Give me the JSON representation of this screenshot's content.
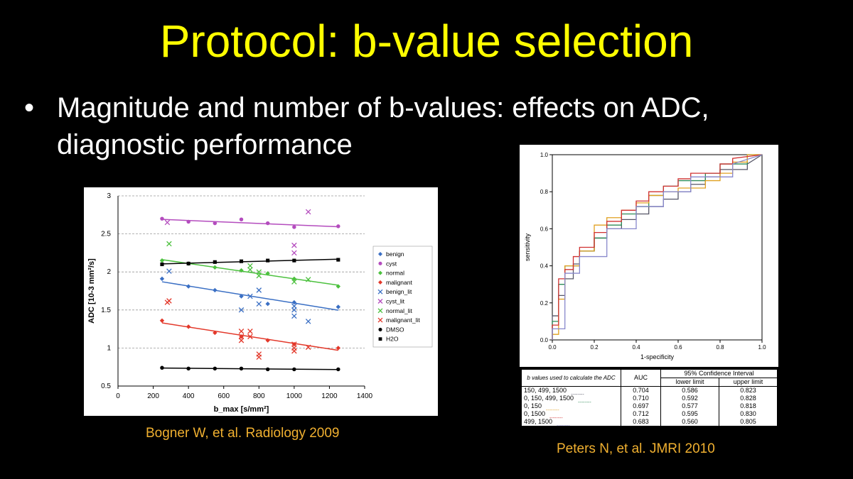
{
  "slide": {
    "title": "Protocol: b-value selection",
    "bullet_symbol": "•",
    "bullet": "Magnitude and number of b-values: effects on ADC, diagnostic performance",
    "citation_left": "Bogner W, et al. Radiology 2009",
    "citation_right": "Peters N, et al. JMRI 2010"
  },
  "chart_data": [
    {
      "type": "scatter",
      "xlabel": "b_max [s/mm²]",
      "ylabel": "ADC [10-3 mm²/s]",
      "xlim": [
        0,
        1400
      ],
      "ylim": [
        0.5,
        3
      ],
      "xticks": [
        "0",
        "200",
        "400",
        "600",
        "800",
        "1000",
        "1200",
        "1400"
      ],
      "yticks": [
        "0.5",
        "1",
        "1.5",
        "2",
        "2.5",
        "3"
      ],
      "grid": "horizontal dashed",
      "legend_position": "right",
      "series": [
        {
          "name": "benign",
          "color": "#3a6fc4",
          "marker": "diamond",
          "fit": true,
          "x": [
            250,
            400,
            550,
            700,
            850,
            1000,
            1250
          ],
          "y": [
            1.91,
            1.81,
            1.76,
            1.68,
            1.58,
            1.6,
            1.54
          ]
        },
        {
          "name": "cyst",
          "color": "#b44cbe",
          "marker": "circle",
          "fit": true,
          "x": [
            250,
            400,
            550,
            700,
            850,
            1000,
            1250
          ],
          "y": [
            2.7,
            2.66,
            2.64,
            2.69,
            2.64,
            2.59,
            2.6
          ]
        },
        {
          "name": "normal",
          "color": "#4cc13e",
          "marker": "diamond",
          "fit": true,
          "x": [
            250,
            400,
            550,
            700,
            850,
            1000,
            1250
          ],
          "y": [
            2.15,
            2.11,
            2.06,
            2.02,
            1.98,
            1.91,
            1.81
          ]
        },
        {
          "name": "malignant",
          "color": "#e3382a",
          "marker": "diamond",
          "fit": true,
          "x": [
            250,
            400,
            550,
            700,
            850,
            1000,
            1250
          ],
          "y": [
            1.36,
            1.28,
            1.2,
            1.15,
            1.1,
            1.05,
            1.0
          ]
        },
        {
          "name": "benign_lit",
          "color": "#3a6fc4",
          "marker": "x",
          "fit": false,
          "x": [
            290,
            700,
            750,
            800,
            800,
            1000,
            1000,
            1000,
            1080
          ],
          "y": [
            2.01,
            1.5,
            1.68,
            1.76,
            1.58,
            1.55,
            1.5,
            1.42,
            1.35
          ]
        },
        {
          "name": "cyst_lit",
          "color": "#b44cbe",
          "marker": "x",
          "fit": false,
          "x": [
            280,
            1000,
            1000,
            1080
          ],
          "y": [
            2.65,
            2.35,
            2.25,
            2.79
          ]
        },
        {
          "name": "normal_lit",
          "color": "#4cc13e",
          "marker": "x",
          "fit": false,
          "x": [
            290,
            750,
            750,
            800,
            800,
            1000,
            1080
          ],
          "y": [
            2.37,
            2.08,
            2.03,
            2.0,
            1.95,
            1.87,
            1.9
          ]
        },
        {
          "name": "malignant_lit",
          "color": "#e3382a",
          "marker": "x",
          "fit": false,
          "x": [
            280,
            290,
            700,
            700,
            700,
            750,
            750,
            800,
            800,
            1000,
            1000,
            1000,
            1080
          ],
          "y": [
            1.6,
            1.62,
            1.22,
            1.15,
            1.1,
            1.22,
            1.15,
            0.92,
            0.88,
            1.05,
            1.0,
            0.96,
            1.01
          ]
        },
        {
          "name": "DMSO",
          "color": "#000000",
          "marker": "circle",
          "fit": true,
          "x": [
            250,
            400,
            550,
            700,
            850,
            1000,
            1250
          ],
          "y": [
            0.74,
            0.73,
            0.73,
            0.73,
            0.72,
            0.72,
            0.72
          ]
        },
        {
          "name": "H2O",
          "color": "#000000",
          "marker": "square",
          "fit": true,
          "x": [
            250,
            400,
            550,
            700,
            850,
            1000,
            1250
          ],
          "y": [
            2.1,
            2.11,
            2.13,
            2.14,
            2.15,
            2.15,
            2.16
          ]
        }
      ]
    },
    {
      "type": "line",
      "xlabel": "1-specificity",
      "ylabel": "sensitivity",
      "xlim": [
        0,
        1
      ],
      "ylim": [
        0,
        1
      ],
      "xticks": [
        "0.0",
        "0.2",
        "0.4",
        "0.6",
        "0.8",
        "1.0"
      ],
      "yticks": [
        "0.0",
        "0.2",
        "0.4",
        "0.6",
        "0.8",
        "1.0"
      ],
      "series": [
        {
          "color": "#555566",
          "x": [
            0,
            0,
            0.03,
            0.03,
            0.06,
            0.06,
            0.1,
            0.1,
            0.13,
            0.13,
            0.2,
            0.2,
            0.26,
            0.26,
            0.33,
            0.33,
            0.4,
            0.4,
            0.46,
            0.46,
            0.53,
            0.53,
            0.6,
            0.6,
            0.66,
            0.66,
            0.73,
            0.73,
            0.8,
            0.8,
            0.93,
            0.93,
            1.0
          ],
          "y": [
            0,
            0.13,
            0.13,
            0.24,
            0.24,
            0.33,
            0.33,
            0.41,
            0.41,
            0.48,
            0.48,
            0.55,
            0.55,
            0.6,
            0.6,
            0.65,
            0.65,
            0.68,
            0.68,
            0.72,
            0.72,
            0.76,
            0.76,
            0.8,
            0.8,
            0.84,
            0.84,
            0.88,
            0.88,
            0.92,
            0.92,
            0.95,
            1.0
          ]
        },
        {
          "color": "#2e8b57",
          "x": [
            0,
            0,
            0.03,
            0.03,
            0.06,
            0.06,
            0.13,
            0.13,
            0.2,
            0.2,
            0.26,
            0.26,
            0.33,
            0.33,
            0.4,
            0.4,
            0.46,
            0.46,
            0.53,
            0.53,
            0.6,
            0.6,
            0.73,
            0.73,
            0.8,
            0.8,
            0.93,
            0.93,
            1.0
          ],
          "y": [
            0,
            0.1,
            0.1,
            0.3,
            0.3,
            0.4,
            0.4,
            0.48,
            0.48,
            0.55,
            0.55,
            0.62,
            0.62,
            0.68,
            0.68,
            0.72,
            0.72,
            0.78,
            0.78,
            0.83,
            0.83,
            0.86,
            0.86,
            0.9,
            0.9,
            0.95,
            0.95,
            1.0,
            1.0
          ]
        },
        {
          "color": "#e0a020",
          "x": [
            0,
            0,
            0.03,
            0.03,
            0.06,
            0.06,
            0.13,
            0.13,
            0.2,
            0.2,
            0.26,
            0.26,
            0.33,
            0.33,
            0.4,
            0.4,
            0.46,
            0.46,
            0.53,
            0.53,
            0.6,
            0.6,
            0.73,
            0.73,
            0.8,
            0.8,
            0.86,
            0.86,
            0.93,
            0.93,
            1.0
          ],
          "y": [
            0,
            0.03,
            0.03,
            0.22,
            0.22,
            0.4,
            0.4,
            0.48,
            0.48,
            0.62,
            0.62,
            0.66,
            0.66,
            0.7,
            0.7,
            0.74,
            0.74,
            0.78,
            0.78,
            0.8,
            0.8,
            0.82,
            0.82,
            0.86,
            0.86,
            0.9,
            0.9,
            0.96,
            0.96,
            1.0,
            1.0
          ]
        },
        {
          "color": "#d03030",
          "x": [
            0,
            0,
            0.03,
            0.03,
            0.06,
            0.06,
            0.1,
            0.1,
            0.13,
            0.13,
            0.2,
            0.2,
            0.26,
            0.26,
            0.33,
            0.33,
            0.4,
            0.4,
            0.46,
            0.46,
            0.53,
            0.53,
            0.6,
            0.6,
            0.66,
            0.66,
            0.8,
            0.8,
            0.86,
            0.86,
            1.0
          ],
          "y": [
            0,
            0.08,
            0.08,
            0.33,
            0.33,
            0.38,
            0.38,
            0.45,
            0.45,
            0.5,
            0.5,
            0.58,
            0.58,
            0.64,
            0.64,
            0.7,
            0.7,
            0.75,
            0.75,
            0.8,
            0.8,
            0.83,
            0.83,
            0.87,
            0.87,
            0.9,
            0.9,
            0.95,
            0.95,
            0.98,
            1.0
          ]
        },
        {
          "color": "#8888cc",
          "x": [
            0,
            0,
            0.06,
            0.06,
            0.13,
            0.13,
            0.26,
            0.26,
            0.4,
            0.4,
            0.53,
            0.53,
            0.66,
            0.66,
            0.86,
            0.86,
            1.0
          ],
          "y": [
            0,
            0.06,
            0.06,
            0.36,
            0.36,
            0.45,
            0.45,
            0.6,
            0.6,
            0.72,
            0.72,
            0.8,
            0.8,
            0.88,
            0.88,
            0.95,
            1.0
          ]
        }
      ]
    },
    {
      "type": "table",
      "headers": {
        "bvalues": "b values used to calculate the ADC",
        "auc": "AUC",
        "ci": "95% Confidence Interval",
        "lower": "lower limit",
        "upper": "upper limit"
      },
      "rows": [
        {
          "label": "150, 499, 1500",
          "dashes": "--------",
          "line_color": "#555566",
          "auc": "0.704",
          "lower": "0.586",
          "upper": "0.823"
        },
        {
          "label": "0, 150, 499, 1500",
          "dashes": "--------",
          "line_color": "#2e8b57",
          "auc": "0.710",
          "lower": "0.592",
          "upper": "0.828"
        },
        {
          "label": "0, 150",
          "dashes": "--------",
          "line_color": "#e0a020",
          "auc": "0.697",
          "lower": "0.577",
          "upper": "0.818"
        },
        {
          "label": "0, 1500",
          "dashes": "--------",
          "line_color": "#d03030",
          "auc": "0.712",
          "lower": "0.595",
          "upper": "0.830"
        },
        {
          "label": "499, 1500",
          "dashes": "--------",
          "line_color": "#8888cc",
          "auc": "0.683",
          "lower": "0.560",
          "upper": "0.805"
        }
      ]
    }
  ]
}
